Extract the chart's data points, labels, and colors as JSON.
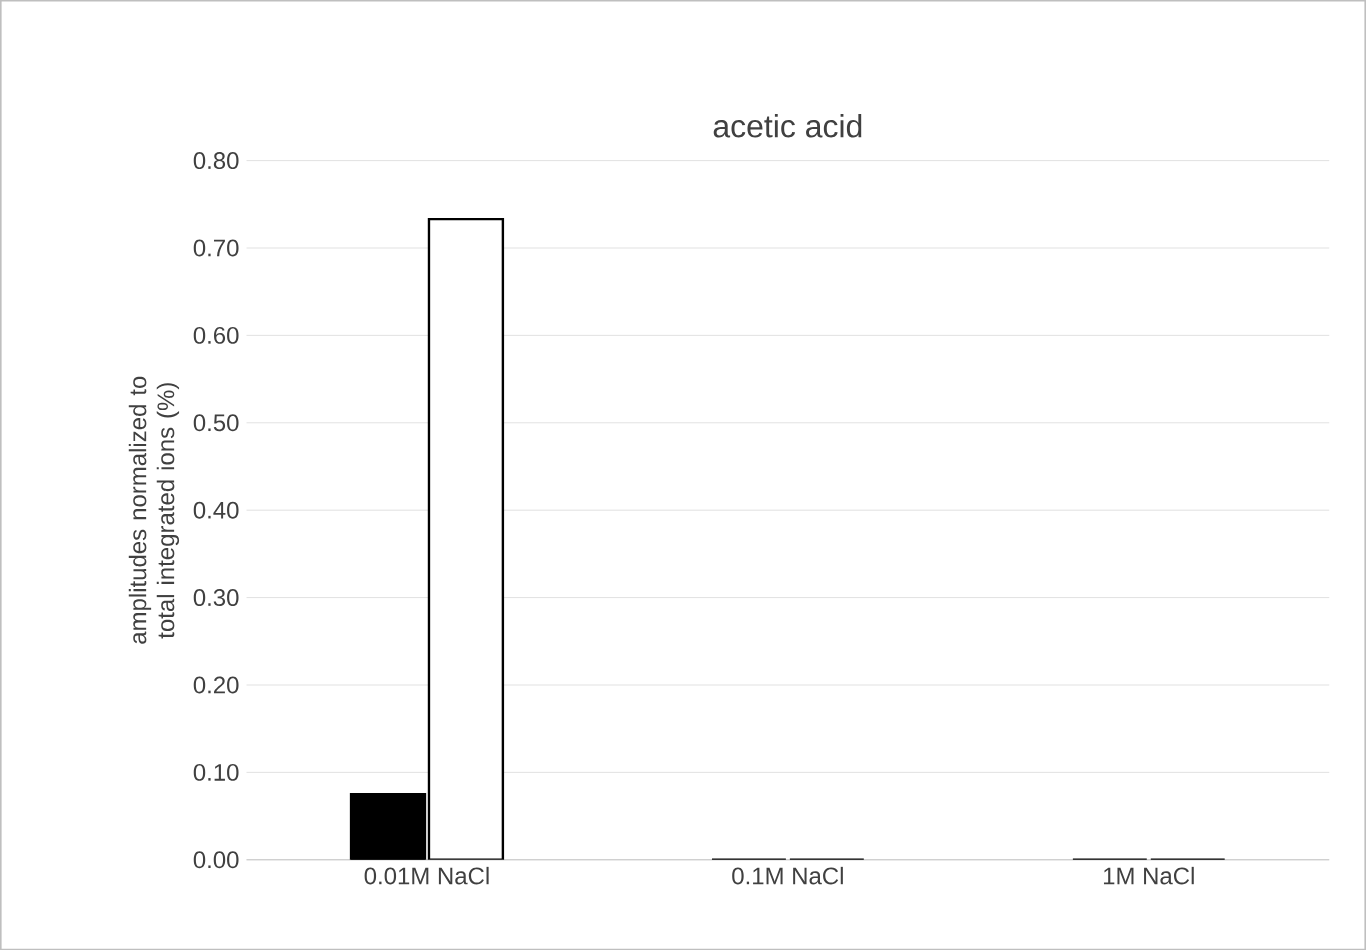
{
  "chart_data": {
    "type": "bar",
    "title": "acetic acid",
    "ylabel": "amplitudes normalized to total integrated ions (%)",
    "categories": [
      "0.01M NaCl",
      "0.1M NaCl",
      "1M NaCl"
    ],
    "series": [
      {
        "color": "#000000",
        "values": [
          0.075,
          0,
          0
        ]
      },
      {
        "color": "#ffffff",
        "values": [
          0.733,
          0,
          0
        ]
      }
    ],
    "ylim": [
      0,
      0.8
    ],
    "yticks": [
      {
        "value": 0,
        "label": "0.00"
      },
      {
        "value": 0.1,
        "label": "0.10"
      },
      {
        "value": 0.2,
        "label": "0.20"
      },
      {
        "value": 0.3,
        "label": "0.30"
      },
      {
        "value": 0.4,
        "label": "0.40"
      },
      {
        "value": 0.5,
        "label": "0.50"
      },
      {
        "value": 0.6,
        "label": "0.60"
      },
      {
        "value": 0.7,
        "label": "0.70"
      },
      {
        "value": 0.8,
        "label": "0.80"
      }
    ],
    "grid": "y"
  }
}
